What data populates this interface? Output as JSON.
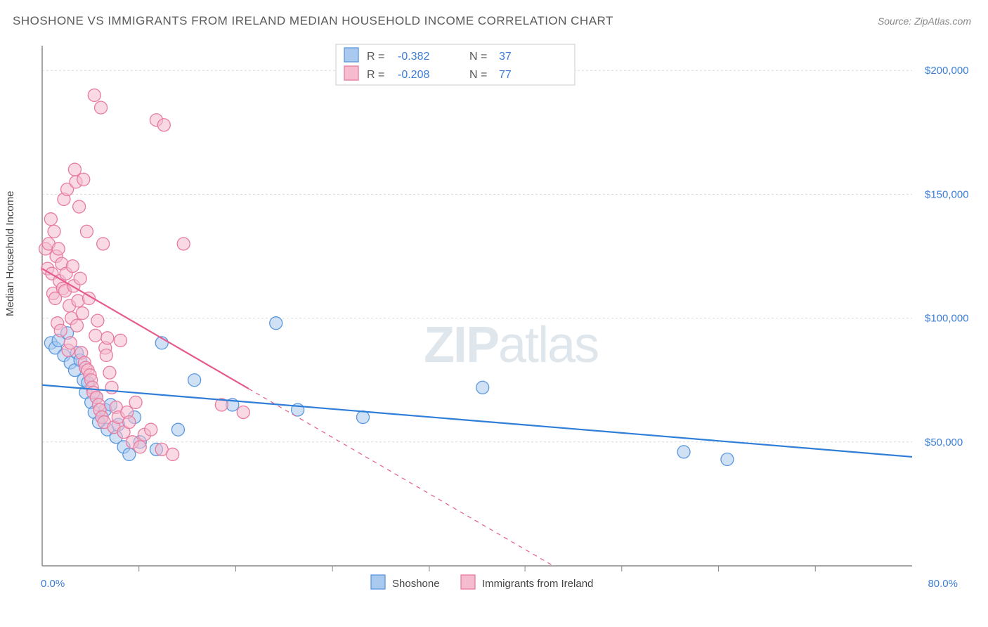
{
  "title": "SHOSHONE VS IMMIGRANTS FROM IRELAND MEDIAN HOUSEHOLD INCOME CORRELATION CHART",
  "source": "Source: ZipAtlas.com",
  "watermark_bold": "ZIP",
  "watermark_rest": "atlas",
  "y_axis_label": "Median Household Income",
  "chart": {
    "type": "scatter",
    "background": "#ffffff",
    "grid_color": "#d9d9d9",
    "axis_color": "#888888",
    "label_color": "#3b7dd8",
    "xlim": [
      0,
      80
    ],
    "ylim": [
      0,
      210000
    ],
    "x_ticks": [
      {
        "v": 0,
        "label": "0.0%"
      },
      {
        "v": 80,
        "label": "80.0%"
      }
    ],
    "x_minor_ticks": [
      8.9,
      17.8,
      26.7,
      35.6,
      44.4,
      53.3,
      62.2,
      71.1
    ],
    "y_ticks": [
      {
        "v": 50000,
        "label": "$50,000"
      },
      {
        "v": 100000,
        "label": "$100,000"
      },
      {
        "v": 150000,
        "label": "$150,000"
      },
      {
        "v": 200000,
        "label": "$200,000"
      }
    ],
    "marker_radius": 9,
    "marker_opacity": 0.55,
    "line_width": 2.2,
    "series": [
      {
        "name": "Shoshone",
        "color_fill": "#a9c9ef",
        "color_stroke": "#5a98de",
        "trend_color": "#2f7ed8",
        "R": "-0.382",
        "N": "37",
        "trend": {
          "x1": 0,
          "y1": 73000,
          "x2": 80,
          "y2": 44000,
          "solid_to_x": 80
        },
        "points": [
          [
            0.8,
            90000
          ],
          [
            1.2,
            88000
          ],
          [
            1.5,
            91000
          ],
          [
            2.0,
            85000
          ],
          [
            2.3,
            94000
          ],
          [
            2.6,
            82000
          ],
          [
            3.0,
            79000
          ],
          [
            3.2,
            86000
          ],
          [
            3.5,
            83000
          ],
          [
            3.8,
            75000
          ],
          [
            4.0,
            70000
          ],
          [
            4.2,
            74000
          ],
          [
            4.5,
            66000
          ],
          [
            4.8,
            62000
          ],
          [
            5.0,
            68000
          ],
          [
            5.2,
            58000
          ],
          [
            5.5,
            60000
          ],
          [
            5.8,
            63000
          ],
          [
            6.0,
            55000
          ],
          [
            6.3,
            65000
          ],
          [
            6.8,
            52000
          ],
          [
            7.0,
            57000
          ],
          [
            7.5,
            48000
          ],
          [
            8.0,
            45000
          ],
          [
            8.5,
            60000
          ],
          [
            9.0,
            50000
          ],
          [
            10.5,
            47000
          ],
          [
            11.0,
            90000
          ],
          [
            12.5,
            55000
          ],
          [
            14.0,
            75000
          ],
          [
            17.5,
            65000
          ],
          [
            21.5,
            98000
          ],
          [
            23.5,
            63000
          ],
          [
            29.5,
            60000
          ],
          [
            40.5,
            72000
          ],
          [
            59.0,
            46000
          ],
          [
            63.0,
            43000
          ]
        ]
      },
      {
        "name": "Immigrants from Ireland",
        "color_fill": "#f4bcce",
        "color_stroke": "#e87ba1",
        "trend_color": "#e65a8e",
        "R": "-0.208",
        "N": "77",
        "trend": {
          "x1": 0,
          "y1": 120000,
          "x2": 47,
          "y2": 0,
          "solid_to_x": 19
        },
        "points": [
          [
            0.3,
            128000
          ],
          [
            0.5,
            120000
          ],
          [
            0.6,
            130000
          ],
          [
            0.8,
            140000
          ],
          [
            0.9,
            118000
          ],
          [
            1.0,
            110000
          ],
          [
            1.1,
            135000
          ],
          [
            1.2,
            108000
          ],
          [
            1.3,
            125000
          ],
          [
            1.4,
            98000
          ],
          [
            1.5,
            128000
          ],
          [
            1.6,
            115000
          ],
          [
            1.7,
            95000
          ],
          [
            1.8,
            122000
          ],
          [
            1.9,
            112000
          ],
          [
            2.0,
            148000
          ],
          [
            2.1,
            111000
          ],
          [
            2.2,
            118000
          ],
          [
            2.3,
            152000
          ],
          [
            2.4,
            87000
          ],
          [
            2.5,
            105000
          ],
          [
            2.6,
            90000
          ],
          [
            2.7,
            100000
          ],
          [
            2.8,
            121000
          ],
          [
            2.9,
            113000
          ],
          [
            3.0,
            160000
          ],
          [
            3.1,
            155000
          ],
          [
            3.2,
            97000
          ],
          [
            3.3,
            107000
          ],
          [
            3.4,
            145000
          ],
          [
            3.5,
            116000
          ],
          [
            3.6,
            86000
          ],
          [
            3.7,
            102000
          ],
          [
            3.8,
            156000
          ],
          [
            3.9,
            82000
          ],
          [
            4.0,
            80000
          ],
          [
            4.1,
            135000
          ],
          [
            4.2,
            79000
          ],
          [
            4.3,
            108000
          ],
          [
            4.4,
            77000
          ],
          [
            4.5,
            75000
          ],
          [
            4.6,
            72000
          ],
          [
            4.7,
            70000
          ],
          [
            4.8,
            190000
          ],
          [
            4.9,
            93000
          ],
          [
            5.0,
            68000
          ],
          [
            5.1,
            99000
          ],
          [
            5.2,
            65000
          ],
          [
            5.3,
            63000
          ],
          [
            5.4,
            185000
          ],
          [
            5.5,
            60000
          ],
          [
            5.6,
            130000
          ],
          [
            5.7,
            58000
          ],
          [
            5.8,
            88000
          ],
          [
            5.9,
            85000
          ],
          [
            6.0,
            92000
          ],
          [
            6.2,
            78000
          ],
          [
            6.4,
            72000
          ],
          [
            6.6,
            56000
          ],
          [
            6.8,
            64000
          ],
          [
            7.0,
            60000
          ],
          [
            7.2,
            91000
          ],
          [
            7.5,
            54000
          ],
          [
            7.8,
            62000
          ],
          [
            8.0,
            58000
          ],
          [
            8.3,
            50000
          ],
          [
            8.6,
            66000
          ],
          [
            9.0,
            48000
          ],
          [
            9.4,
            53000
          ],
          [
            10.0,
            55000
          ],
          [
            10.5,
            180000
          ],
          [
            11.0,
            47000
          ],
          [
            11.2,
            178000
          ],
          [
            12.0,
            45000
          ],
          [
            13.0,
            130000
          ],
          [
            16.5,
            65000
          ],
          [
            18.5,
            62000
          ]
        ]
      }
    ],
    "legend": {
      "items": [
        "Shoshone",
        "Immigrants from Ireland"
      ]
    }
  }
}
